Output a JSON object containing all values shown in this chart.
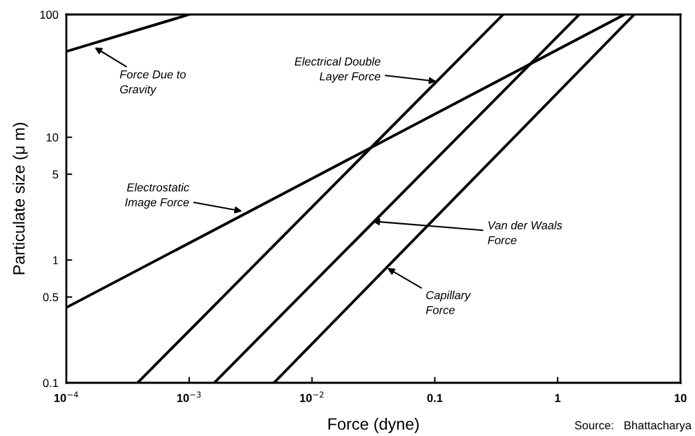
{
  "chart_data": {
    "type": "line",
    "xlabel": "Force (dyne)",
    "ylabel": "Particulate size (μ m)",
    "log": "xy",
    "grid": false,
    "legend": false,
    "xlim": [
      0.0001,
      10
    ],
    "ylim": [
      0.1,
      100
    ],
    "xticks": [
      {
        "value": 0.0001,
        "label": "10$^{−4}$"
      },
      {
        "value": 0.001,
        "label": "10$^{−3}$"
      },
      {
        "value": 0.01,
        "label": "10$^{−2}$"
      },
      0.1,
      1,
      10
    ],
    "yticks": [
      0.1,
      0.5,
      1,
      5,
      10,
      100
    ],
    "series": [
      {
        "color": "#000000",
        "x": [
          0.0001,
          0.001
        ],
        "values": [
          50,
          100
        ]
      },
      {
        "color": "#000000",
        "x": [
          0.0001,
          3.5
        ],
        "values": [
          0.41,
          100
        ]
      },
      {
        "color": "#000000",
        "x": [
          0.00038,
          0.36
        ],
        "values": [
          0.1,
          100
        ]
      },
      {
        "color": "#000000",
        "x": [
          0.0016,
          1.5
        ],
        "values": [
          0.1,
          100
        ]
      },
      {
        "color": "#000000",
        "x": [
          0.0049,
          4.2
        ],
        "values": [
          0.1,
          100
        ]
      }
    ],
    "annotations": [
      {
        "text": "Force Due to\nGravity",
        "x": 0.00017,
        "y": 54
      },
      {
        "text": "Electrical Double\nLayer Force",
        "x": 0.103,
        "y": 28.5
      },
      {
        "text": "Electrostatic\nImage Force",
        "x": 0.0027,
        "y": 2.5
      },
      {
        "text": "Van der Waals\nForce",
        "x": 0.031,
        "y": 2.07
      },
      {
        "text": "Capillary\nForce",
        "x": 0.041,
        "y": 0.86
      },
      "Source:   Bhattacharya"
    ]
  }
}
